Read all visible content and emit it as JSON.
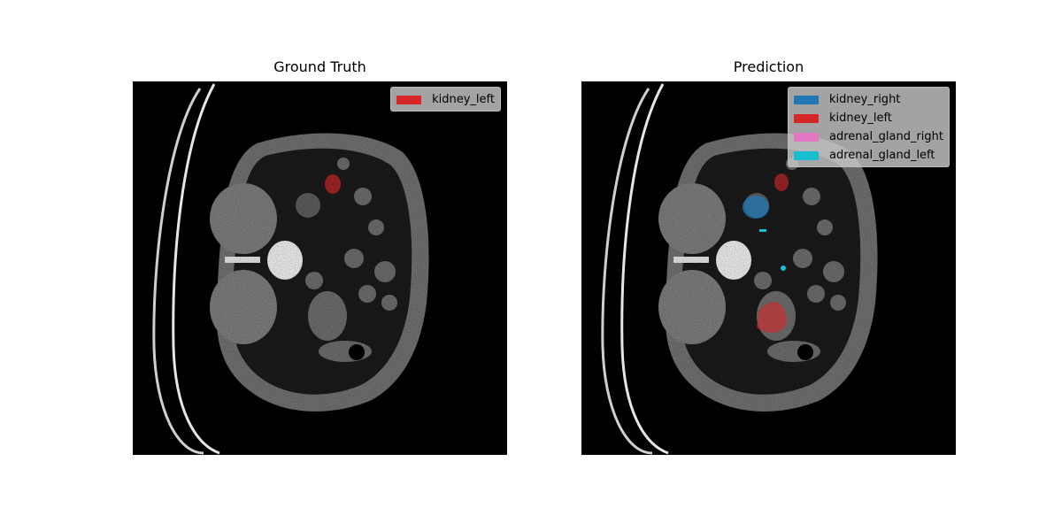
{
  "panels": [
    {
      "title": "Ground Truth",
      "legend": [
        {
          "label": "kidney_left",
          "color": "#d62728"
        }
      ]
    },
    {
      "title": "Prediction",
      "legend": [
        {
          "label": "kidney_right",
          "color": "#1f77b4"
        },
        {
          "label": "kidney_left",
          "color": "#d62728"
        },
        {
          "label": "adrenal_gland_right",
          "color": "#e377c2"
        },
        {
          "label": "adrenal_gland_left",
          "color": "#17becf"
        }
      ]
    }
  ]
}
